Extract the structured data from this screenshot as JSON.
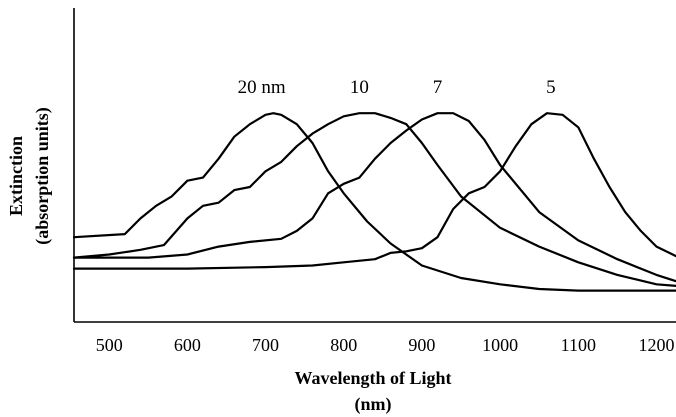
{
  "chart_data": {
    "type": "line",
    "xlabel_line1": "Wavelength of Light",
    "xlabel_line2": "(nm)",
    "ylabel_line1": "Extinction",
    "ylabel_line2": "(absorption units)",
    "xlim": [
      455,
      1225
    ],
    "ylim": [
      0,
      1.0
    ],
    "x_ticks": [
      500,
      600,
      700,
      800,
      900,
      1000,
      1100,
      1200
    ],
    "grid": false,
    "line_color": "#000000",
    "series": [
      {
        "name": "20 nm",
        "x": [
          455,
          520,
          540,
          560,
          580,
          600,
          620,
          640,
          660,
          680,
          700,
          710,
          720,
          740,
          760,
          780,
          800,
          830,
          860,
          900,
          950,
          1000,
          1050,
          1100,
          1150,
          1200,
          1225
        ],
        "y": [
          0.27,
          0.28,
          0.33,
          0.37,
          0.4,
          0.45,
          0.46,
          0.52,
          0.59,
          0.63,
          0.66,
          0.665,
          0.66,
          0.63,
          0.57,
          0.48,
          0.41,
          0.32,
          0.25,
          0.18,
          0.14,
          0.12,
          0.105,
          0.1,
          0.1,
          0.1,
          0.1
        ]
      },
      {
        "name": "10",
        "x": [
          455,
          500,
          540,
          570,
          600,
          620,
          640,
          660,
          680,
          700,
          720,
          740,
          760,
          780,
          800,
          820,
          840,
          860,
          880,
          900,
          920,
          950,
          1000,
          1050,
          1100,
          1150,
          1200,
          1225
        ],
        "y": [
          0.205,
          0.215,
          0.23,
          0.245,
          0.33,
          0.37,
          0.38,
          0.42,
          0.43,
          0.48,
          0.51,
          0.56,
          0.6,
          0.63,
          0.655,
          0.665,
          0.665,
          0.65,
          0.63,
          0.57,
          0.5,
          0.4,
          0.3,
          0.24,
          0.19,
          0.15,
          0.12,
          0.115
        ]
      },
      {
        "name": "7",
        "x": [
          455,
          550,
          600,
          640,
          680,
          720,
          740,
          760,
          780,
          800,
          820,
          840,
          860,
          880,
          900,
          920,
          940,
          960,
          980,
          1000,
          1050,
          1100,
          1150,
          1200,
          1225
        ],
        "y": [
          0.205,
          0.205,
          0.215,
          0.24,
          0.255,
          0.265,
          0.29,
          0.33,
          0.41,
          0.44,
          0.46,
          0.52,
          0.57,
          0.61,
          0.645,
          0.665,
          0.665,
          0.64,
          0.58,
          0.5,
          0.35,
          0.26,
          0.2,
          0.15,
          0.13
        ]
      },
      {
        "name": "5",
        "x": [
          455,
          600,
          700,
          760,
          800,
          840,
          860,
          880,
          900,
          920,
          940,
          960,
          980,
          1000,
          1020,
          1040,
          1060,
          1080,
          1100,
          1120,
          1140,
          1160,
          1180,
          1200,
          1225
        ],
        "y": [
          0.17,
          0.17,
          0.175,
          0.18,
          0.19,
          0.2,
          0.22,
          0.225,
          0.235,
          0.27,
          0.36,
          0.41,
          0.43,
          0.48,
          0.56,
          0.63,
          0.665,
          0.66,
          0.62,
          0.52,
          0.43,
          0.35,
          0.29,
          0.24,
          0.21
        ]
      }
    ],
    "series_labels": [
      {
        "text": "20 nm",
        "x": 695,
        "y": 0.73
      },
      {
        "text": "10",
        "x": 820,
        "y": 0.73
      },
      {
        "text": "7",
        "x": 920,
        "y": 0.73
      },
      {
        "text": "5",
        "x": 1065,
        "y": 0.73
      }
    ]
  }
}
